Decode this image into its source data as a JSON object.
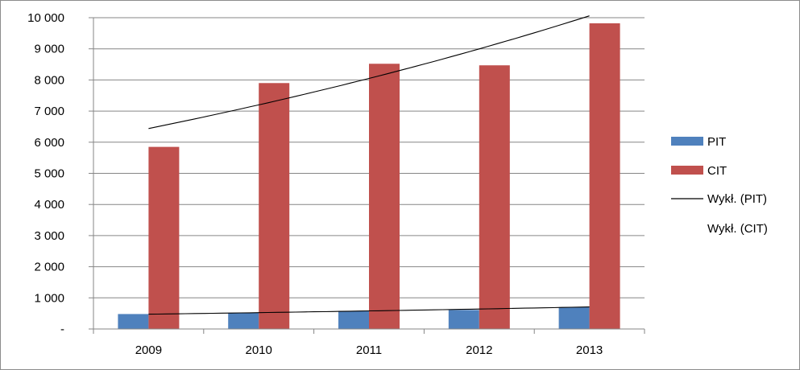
{
  "chart_data": {
    "type": "bar",
    "categories": [
      "2009",
      "2010",
      "2011",
      "2012",
      "2013"
    ],
    "series": [
      {
        "name": "PIT",
        "values": [
          480,
          520,
          580,
          610,
          700
        ],
        "color": "#4F81BD"
      },
      {
        "name": "CIT",
        "values": [
          5850,
          7900,
          8520,
          8470,
          9820
        ],
        "color": "#C0504D"
      }
    ],
    "trendlines": [
      {
        "name": "Wykł. (PIT)",
        "type": "exponential",
        "of_series": "PIT",
        "values": [
          475,
          525,
          580,
          641,
          709
        ],
        "color": "#000000"
      },
      {
        "name": "Wykł. (CIT)",
        "type": "exponential",
        "of_series": "CIT",
        "values": [
          6440,
          7200,
          8050,
          9000,
          10060
        ],
        "color": "#000000"
      }
    ],
    "y_ticks": [
      "-",
      "1 000",
      "2 000",
      "3 000",
      "4 000",
      "5 000",
      "6 000",
      "7 000",
      "8 000",
      "9 000",
      "10 000"
    ],
    "ylim": [
      0,
      10000
    ],
    "grid": true,
    "legend_position": "right"
  }
}
